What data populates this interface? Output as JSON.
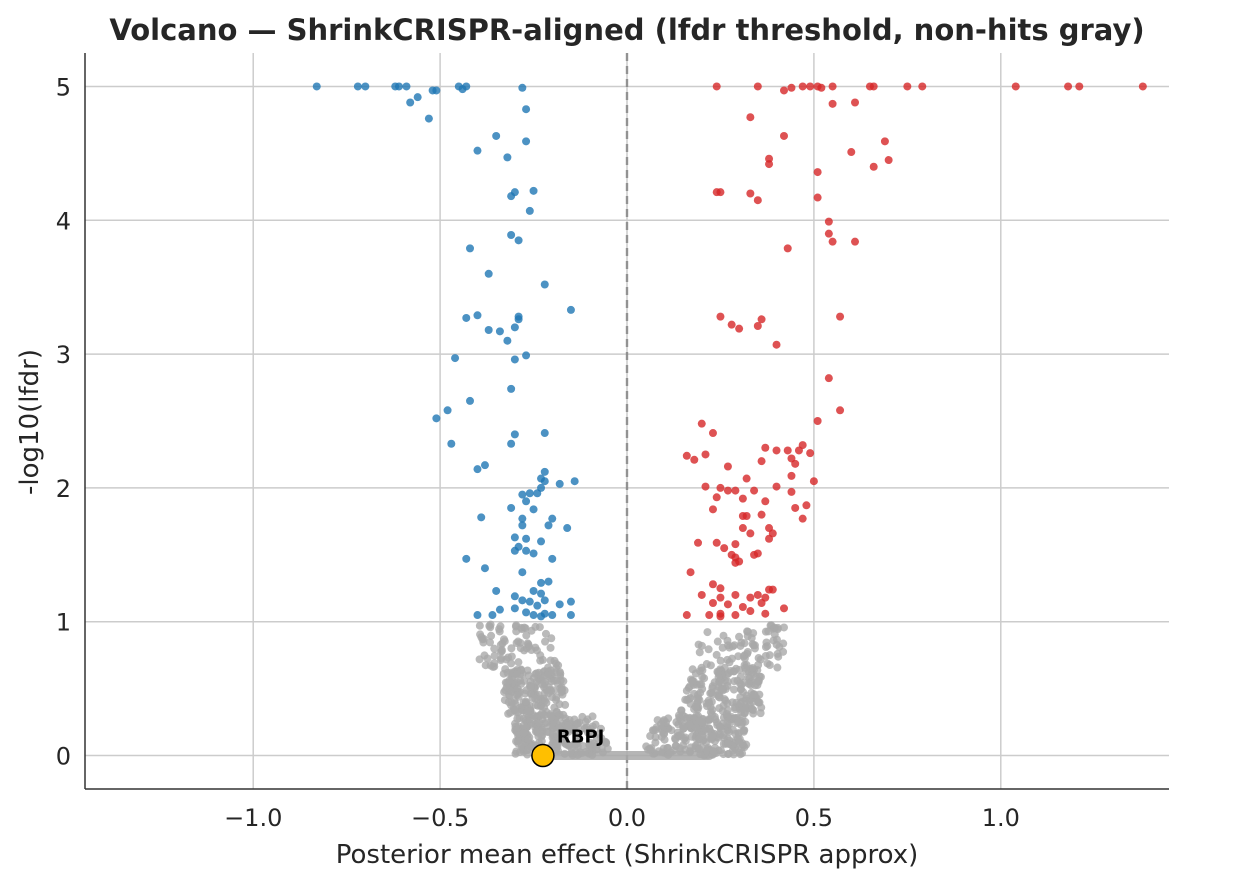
{
  "chart_data": {
    "type": "scatter",
    "title": "Volcano — ShrinkCRISPR-aligned (lfdr threshold, non-hits gray)",
    "xlabel": "Posterior mean effect (ShrinkCRISPR approx)",
    "ylabel": "-log10(lfdr)",
    "xlim": [
      -1.45,
      1.45
    ],
    "ylim": [
      -0.25,
      5.25
    ],
    "xticks": [
      -1.0,
      -0.5,
      0.0,
      0.5,
      1.0
    ],
    "xtick_labels": [
      "−1.0",
      "−0.5",
      "0.0",
      "0.5",
      "1.0"
    ],
    "yticks": [
      0,
      1,
      2,
      3,
      4,
      5
    ],
    "ytick_labels": [
      "0",
      "1",
      "2",
      "3",
      "4",
      "5"
    ],
    "grid": true,
    "reference_line": {
      "x": 0,
      "style": "dashed"
    },
    "colors": {
      "negative_hits": "#1f77b4",
      "positive_hits": "#d62728",
      "non_hits": "#a9a9a9",
      "highlight": "#ffbf00",
      "grid": "#cccccc",
      "refline": "#808080"
    },
    "series": [
      {
        "role": "negative_hits",
        "points": [
          [
            -0.83,
            5.0
          ],
          [
            -0.72,
            5.0
          ],
          [
            -0.7,
            5.0
          ],
          [
            -0.62,
            5.0
          ],
          [
            -0.61,
            5.0
          ],
          [
            -0.59,
            5.0
          ],
          [
            -0.52,
            4.97
          ],
          [
            -0.51,
            4.97
          ],
          [
            -0.45,
            5.0
          ],
          [
            -0.44,
            4.98
          ],
          [
            -0.43,
            5.0
          ],
          [
            -0.28,
            4.99
          ],
          [
            -0.58,
            4.88
          ],
          [
            -0.56,
            4.92
          ],
          [
            -0.53,
            4.76
          ],
          [
            -0.27,
            4.83
          ],
          [
            -0.27,
            4.59
          ],
          [
            -0.35,
            4.63
          ],
          [
            -0.4,
            4.52
          ],
          [
            -0.32,
            4.47
          ],
          [
            -0.31,
            4.18
          ],
          [
            -0.3,
            4.21
          ],
          [
            -0.25,
            4.22
          ],
          [
            -0.26,
            4.07
          ],
          [
            -0.31,
            3.89
          ],
          [
            -0.29,
            3.85
          ],
          [
            -0.42,
            3.79
          ],
          [
            -0.37,
            3.6
          ],
          [
            -0.22,
            3.52
          ],
          [
            -0.15,
            3.33
          ],
          [
            -0.43,
            3.27
          ],
          [
            -0.4,
            3.29
          ],
          [
            -0.29,
            3.28
          ],
          [
            -0.29,
            3.26
          ],
          [
            -0.37,
            3.18
          ],
          [
            -0.34,
            3.17
          ],
          [
            -0.3,
            3.2
          ],
          [
            -0.32,
            3.1
          ],
          [
            -0.27,
            2.99
          ],
          [
            -0.46,
            2.97
          ],
          [
            -0.3,
            2.96
          ],
          [
            -0.31,
            2.74
          ],
          [
            -0.42,
            2.65
          ],
          [
            -0.48,
            2.58
          ],
          [
            -0.51,
            2.52
          ],
          [
            -0.3,
            2.4
          ],
          [
            -0.22,
            2.41
          ],
          [
            -0.47,
            2.33
          ],
          [
            -0.31,
            2.33
          ],
          [
            -0.4,
            2.14
          ],
          [
            -0.38,
            2.17
          ],
          [
            -0.22,
            2.12
          ],
          [
            -0.23,
            2.07
          ],
          [
            -0.22,
            2.05
          ],
          [
            -0.14,
            2.05
          ],
          [
            -0.18,
            2.03
          ],
          [
            -0.23,
            2.0
          ],
          [
            -0.24,
            1.96
          ],
          [
            -0.26,
            1.96
          ],
          [
            -0.28,
            1.95
          ],
          [
            -0.27,
            1.9
          ],
          [
            -0.25,
            1.84
          ],
          [
            -0.31,
            1.85
          ],
          [
            -0.2,
            1.77
          ],
          [
            -0.28,
            1.77
          ],
          [
            -0.39,
            1.78
          ],
          [
            -0.16,
            1.7
          ],
          [
            -0.21,
            1.72
          ],
          [
            -0.28,
            1.72
          ],
          [
            -0.3,
            1.63
          ],
          [
            -0.27,
            1.62
          ],
          [
            -0.23,
            1.6
          ],
          [
            -0.29,
            1.56
          ],
          [
            -0.3,
            1.53
          ],
          [
            -0.27,
            1.53
          ],
          [
            -0.25,
            1.51
          ],
          [
            -0.2,
            1.47
          ],
          [
            -0.43,
            1.47
          ],
          [
            -0.38,
            1.4
          ],
          [
            -0.28,
            1.37
          ],
          [
            -0.21,
            1.3
          ],
          [
            -0.23,
            1.29
          ],
          [
            -0.25,
            1.23
          ],
          [
            -0.35,
            1.23
          ],
          [
            -0.23,
            1.21
          ],
          [
            -0.3,
            1.19
          ],
          [
            -0.26,
            1.15
          ],
          [
            -0.22,
            1.16
          ],
          [
            -0.28,
            1.16
          ],
          [
            -0.15,
            1.15
          ],
          [
            -0.18,
            1.13
          ],
          [
            -0.24,
            1.12
          ],
          [
            -0.3,
            1.1
          ],
          [
            -0.34,
            1.09
          ],
          [
            -0.27,
            1.07
          ],
          [
            -0.4,
            1.05
          ],
          [
            -0.36,
            1.05
          ],
          [
            -0.25,
            1.05
          ],
          [
            -0.22,
            1.06
          ],
          [
            -0.15,
            1.05
          ],
          [
            -0.2,
            1.05
          ],
          [
            -0.23,
            1.04
          ]
        ]
      },
      {
        "role": "positive_hits",
        "points": [
          [
            0.24,
            5.0
          ],
          [
            0.35,
            5.0
          ],
          [
            0.42,
            4.97
          ],
          [
            0.44,
            4.99
          ],
          [
            0.47,
            5.0
          ],
          [
            0.49,
            5.0
          ],
          [
            0.51,
            5.0
          ],
          [
            0.52,
            4.99
          ],
          [
            0.55,
            5.0
          ],
          [
            0.65,
            5.0
          ],
          [
            0.66,
            5.0
          ],
          [
            0.75,
            5.0
          ],
          [
            0.79,
            5.0
          ],
          [
            1.04,
            5.0
          ],
          [
            1.18,
            5.0
          ],
          [
            1.21,
            5.0
          ],
          [
            1.38,
            5.0
          ],
          [
            0.55,
            4.87
          ],
          [
            0.61,
            4.88
          ],
          [
            0.33,
            4.77
          ],
          [
            0.42,
            4.63
          ],
          [
            0.69,
            4.59
          ],
          [
            0.6,
            4.51
          ],
          [
            0.38,
            4.46
          ],
          [
            0.38,
            4.42
          ],
          [
            0.7,
            4.45
          ],
          [
            0.51,
            4.36
          ],
          [
            0.66,
            4.4
          ],
          [
            0.24,
            4.21
          ],
          [
            0.25,
            4.21
          ],
          [
            0.33,
            4.2
          ],
          [
            0.35,
            4.15
          ],
          [
            0.51,
            4.17
          ],
          [
            0.54,
            3.99
          ],
          [
            0.54,
            3.9
          ],
          [
            0.55,
            3.84
          ],
          [
            0.61,
            3.84
          ],
          [
            0.43,
            3.79
          ],
          [
            0.25,
            3.28
          ],
          [
            0.28,
            3.22
          ],
          [
            0.3,
            3.19
          ],
          [
            0.36,
            3.26
          ],
          [
            0.35,
            3.21
          ],
          [
            0.57,
            3.28
          ],
          [
            0.4,
            3.07
          ],
          [
            0.54,
            2.82
          ],
          [
            0.57,
            2.58
          ],
          [
            0.51,
            2.5
          ],
          [
            0.2,
            2.48
          ],
          [
            0.23,
            2.41
          ],
          [
            0.16,
            2.24
          ],
          [
            0.18,
            2.21
          ],
          [
            0.21,
            2.25
          ],
          [
            0.37,
            2.3
          ],
          [
            0.36,
            2.2
          ],
          [
            0.4,
            2.28
          ],
          [
            0.43,
            2.28
          ],
          [
            0.44,
            2.22
          ],
          [
            0.45,
            2.18
          ],
          [
            0.47,
            2.32
          ],
          [
            0.46,
            2.28
          ],
          [
            0.49,
            2.26
          ],
          [
            0.27,
            2.16
          ],
          [
            0.32,
            2.07
          ],
          [
            0.44,
            2.09
          ],
          [
            0.5,
            2.05
          ],
          [
            0.21,
            2.01
          ],
          [
            0.25,
            2.0
          ],
          [
            0.27,
            1.98
          ],
          [
            0.29,
            1.98
          ],
          [
            0.34,
            1.98
          ],
          [
            0.4,
            2.01
          ],
          [
            0.44,
            1.97
          ],
          [
            0.24,
            1.93
          ],
          [
            0.31,
            1.92
          ],
          [
            0.37,
            1.9
          ],
          [
            0.45,
            1.85
          ],
          [
            0.48,
            1.87
          ],
          [
            0.23,
            1.84
          ],
          [
            0.36,
            1.8
          ],
          [
            0.31,
            1.79
          ],
          [
            0.32,
            1.79
          ],
          [
            0.47,
            1.77
          ],
          [
            0.31,
            1.7
          ],
          [
            0.33,
            1.66
          ],
          [
            0.38,
            1.7
          ],
          [
            0.39,
            1.66
          ],
          [
            0.38,
            1.62
          ],
          [
            0.19,
            1.59
          ],
          [
            0.24,
            1.59
          ],
          [
            0.26,
            1.55
          ],
          [
            0.29,
            1.58
          ],
          [
            0.28,
            1.5
          ],
          [
            0.29,
            1.48
          ],
          [
            0.34,
            1.5
          ],
          [
            0.35,
            1.51
          ],
          [
            0.29,
            1.44
          ],
          [
            0.3,
            1.45
          ],
          [
            0.17,
            1.37
          ],
          [
            0.23,
            1.28
          ],
          [
            0.25,
            1.25
          ],
          [
            0.38,
            1.24
          ],
          [
            0.39,
            1.24
          ],
          [
            0.35,
            1.2
          ],
          [
            0.37,
            1.18
          ],
          [
            0.2,
            1.2
          ],
          [
            0.25,
            1.18
          ],
          [
            0.29,
            1.2
          ],
          [
            0.33,
            1.18
          ],
          [
            0.23,
            1.14
          ],
          [
            0.27,
            1.13
          ],
          [
            0.31,
            1.11
          ],
          [
            0.36,
            1.14
          ],
          [
            0.16,
            1.05
          ],
          [
            0.22,
            1.05
          ],
          [
            0.25,
            1.06
          ],
          [
            0.25,
            1.04
          ],
          [
            0.29,
            1.05
          ],
          [
            0.33,
            1.08
          ],
          [
            0.37,
            1.06
          ],
          [
            0.42,
            1.1
          ]
        ]
      },
      {
        "role": "non_hits",
        "description_free": true,
        "bands": [
          {
            "side": -1,
            "ymin": 0.0,
            "ymax": 0.3,
            "xmin": 0.04,
            "xmax": 0.3,
            "n": 230
          },
          {
            "side": -1,
            "ymin": 0.3,
            "ymax": 0.65,
            "xmin": 0.15,
            "xmax": 0.33,
            "n": 170
          },
          {
            "side": -1,
            "ymin": 0.65,
            "ymax": 0.98,
            "xmin": 0.17,
            "xmax": 0.4,
            "n": 75
          },
          {
            "side": 1,
            "ymin": 0.0,
            "ymax": 0.3,
            "xmin": 0.04,
            "xmax": 0.32,
            "n": 230
          },
          {
            "side": 1,
            "ymin": 0.3,
            "ymax": 0.65,
            "xmin": 0.14,
            "xmax": 0.36,
            "n": 170
          },
          {
            "side": 1,
            "ymin": 0.65,
            "ymax": 0.98,
            "xmin": 0.16,
            "xmax": 0.43,
            "n": 75
          }
        ],
        "baseline_segment": {
          "x0": -0.22,
          "x1": 0.22,
          "y": 0.0
        }
      }
    ],
    "highlight": {
      "label": "RBPJ",
      "x": -0.225,
      "y": 0.0
    }
  }
}
